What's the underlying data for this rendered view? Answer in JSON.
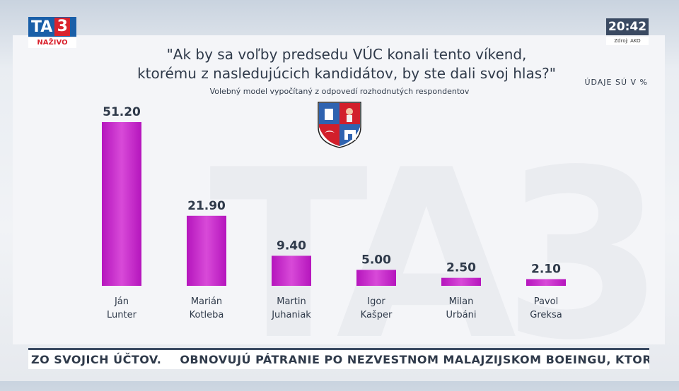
{
  "logo": {
    "brand": "TA",
    "number": "3",
    "live": "NAŽIVO"
  },
  "clock": {
    "time": "20:42",
    "source": "Zdroj: AKO"
  },
  "header": {
    "title_line1": "\"Ak by sa voľby predsedu VÚC konali tento víkend,",
    "title_line2": "ktorému z nasledujúcich kandidátov, by ste dali svoj hlas?\"",
    "subtitle": "Volebný model vypočítaný z odpovedí rozhodnutých respondentov",
    "unit_note": "ÚDAJE SÚ V %"
  },
  "colors": {
    "bar": "#b515bd",
    "bar_light": "#d84ad8",
    "text": "#2f3a4a",
    "accent_red": "#d9232e",
    "brand_blue": "#1a5fa8"
  },
  "chart_data": {
    "type": "bar",
    "categories": [
      [
        "Ján",
        "Lunter"
      ],
      [
        "Marián",
        "Kotleba"
      ],
      [
        "Martin",
        "Juhaniak"
      ],
      [
        "Igor",
        "Kašper"
      ],
      [
        "Milan",
        "Urbáni"
      ],
      [
        "Pavol",
        "Greksa"
      ]
    ],
    "values": [
      51.2,
      21.9,
      9.4,
      5.0,
      2.5,
      2.1
    ],
    "value_labels": [
      "51.20",
      "21.90",
      "9.40",
      "5.00",
      "2.50",
      "2.10"
    ],
    "ylim": [
      0,
      51.2
    ],
    "grid": false,
    "legend": "none"
  },
  "ticker": {
    "item1": "ZO SVOJICH ÚČTOV.",
    "item2": "OBNOVUJÚ PÁTRANIE PO NEZVESTNOM MALAJZIJSKOM BOEINGU, KTORÝ ZMIZOL V M"
  }
}
